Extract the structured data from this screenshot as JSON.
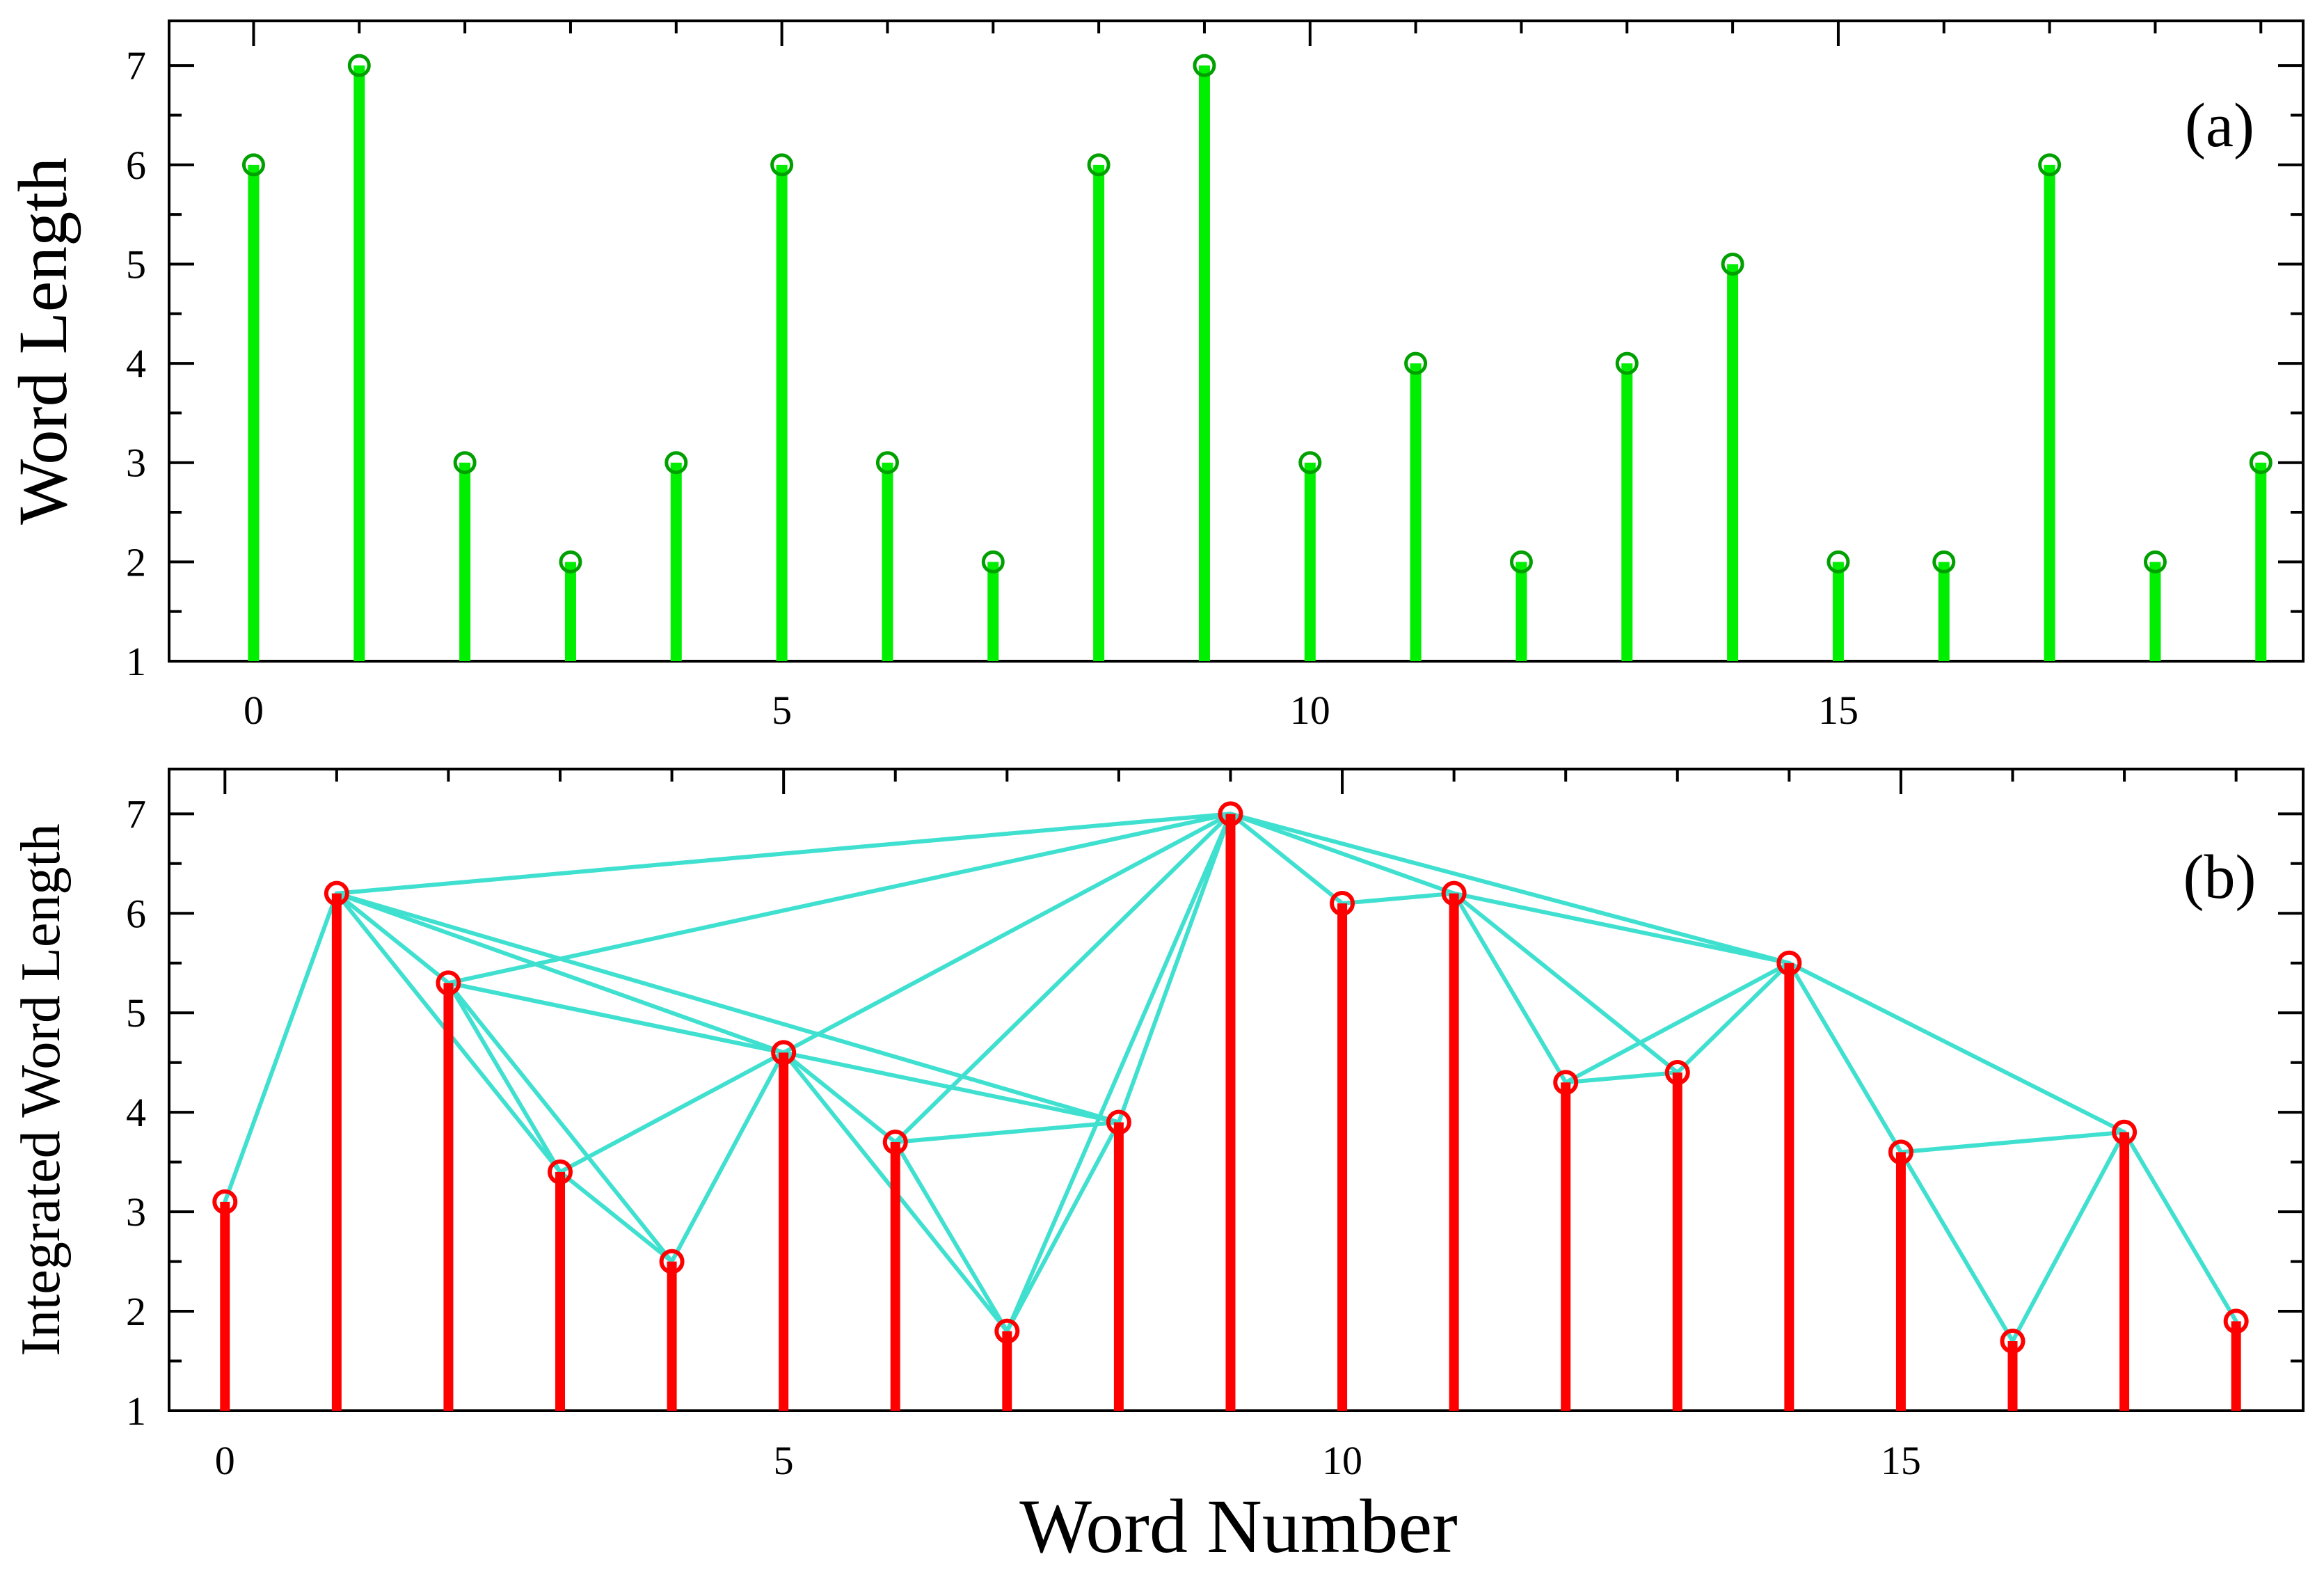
{
  "chart_data": [
    {
      "type": "stem",
      "panel_label": "(a)",
      "ylabel": "Word Length",
      "xlabel": "",
      "xlim": [
        -0.8,
        19.4
      ],
      "ylim": [
        1,
        7.45
      ],
      "xticks": [
        0,
        5,
        10,
        15
      ],
      "yticks": [
        1,
        2,
        3,
        4,
        5,
        6,
        7
      ],
      "stem_color": "#00ee00",
      "marker_color": "#00a000",
      "x": [
        0,
        1,
        2,
        3,
        4,
        5,
        6,
        7,
        8,
        9,
        10,
        11,
        12,
        13,
        14,
        15,
        16,
        17,
        18,
        19
      ],
      "values": [
        6,
        7,
        3,
        2,
        3,
        6,
        3,
        2,
        6,
        7,
        3,
        4,
        2,
        4,
        5,
        2,
        2,
        6,
        2,
        3
      ]
    },
    {
      "type": "stem-visibility-graph",
      "panel_label": "(b)",
      "ylabel": "Integrated Word Length",
      "xlabel": "Word Number",
      "xlim": [
        -0.5,
        18.6
      ],
      "ylim": [
        1,
        7.45
      ],
      "xticks": [
        0,
        5,
        10,
        15
      ],
      "yticks": [
        1,
        2,
        3,
        4,
        5,
        6,
        7
      ],
      "stem_color": "#ff0000",
      "marker_color": "#ff0000",
      "edge_color": "#40e0d0",
      "x": [
        0,
        1,
        2,
        3,
        4,
        5,
        6,
        7,
        8,
        9,
        10,
        11,
        12,
        13,
        14,
        15,
        16,
        17,
        18
      ],
      "values": [
        3.1,
        6.2,
        5.3,
        3.4,
        2.5,
        4.6,
        3.7,
        1.8,
        3.9,
        7.0,
        6.1,
        6.2,
        4.3,
        4.4,
        5.5,
        3.6,
        1.7,
        3.8,
        1.9
      ],
      "edges": [
        [
          0,
          1
        ],
        [
          1,
          2
        ],
        [
          1,
          9
        ],
        [
          1,
          5
        ],
        [
          1,
          8
        ],
        [
          1,
          3
        ],
        [
          2,
          3
        ],
        [
          2,
          4
        ],
        [
          2,
          5
        ],
        [
          2,
          8
        ],
        [
          2,
          9
        ],
        [
          3,
          4
        ],
        [
          3,
          5
        ],
        [
          4,
          5
        ],
        [
          5,
          6
        ],
        [
          5,
          9
        ],
        [
          5,
          7
        ],
        [
          6,
          7
        ],
        [
          6,
          8
        ],
        [
          6,
          9
        ],
        [
          7,
          8
        ],
        [
          7,
          9
        ],
        [
          8,
          9
        ],
        [
          9,
          10
        ],
        [
          9,
          11
        ],
        [
          9,
          14
        ],
        [
          10,
          11
        ],
        [
          11,
          12
        ],
        [
          11,
          13
        ],
        [
          11,
          14
        ],
        [
          12,
          13
        ],
        [
          12,
          14
        ],
        [
          13,
          14
        ],
        [
          14,
          15
        ],
        [
          14,
          17
        ],
        [
          15,
          16
        ],
        [
          15,
          17
        ],
        [
          16,
          17
        ],
        [
          17,
          18
        ]
      ]
    }
  ]
}
